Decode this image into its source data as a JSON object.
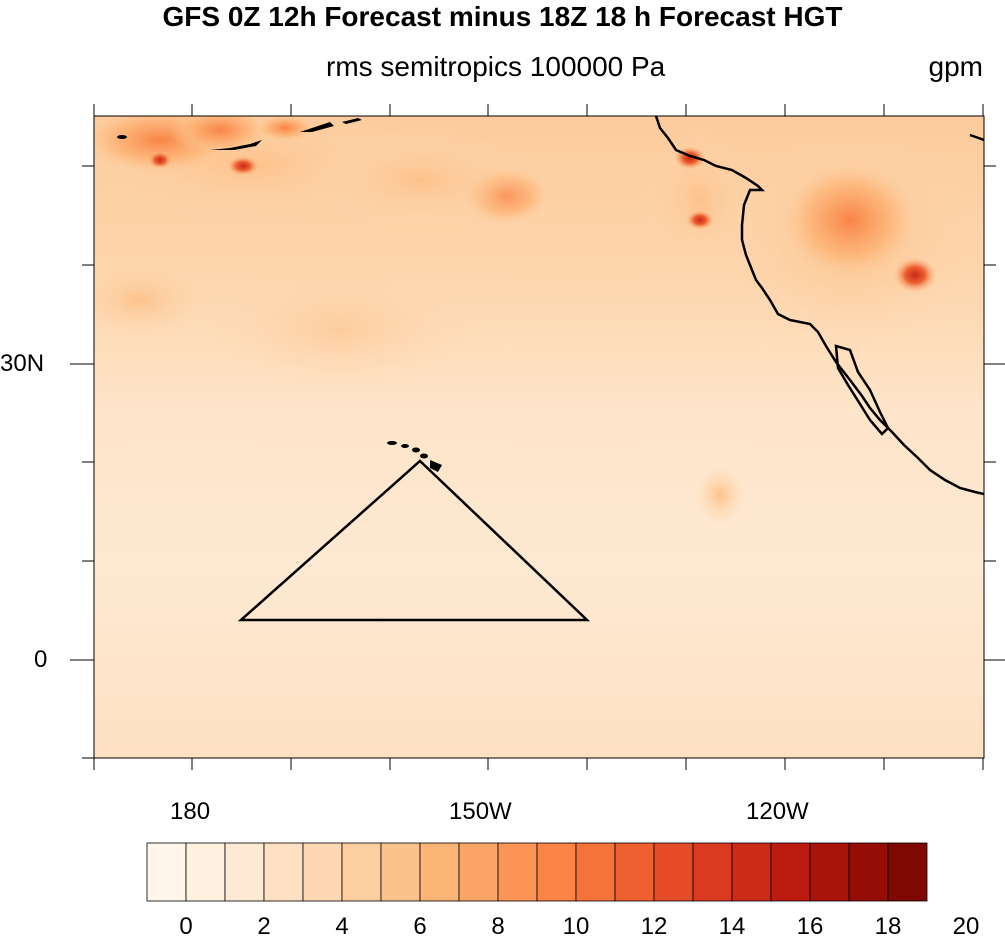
{
  "title": "GFS 0Z 12h Forecast minus 18Z 18 h Forecast HGT",
  "subtitle": "rms semitropics 100000 Pa",
  "units": "gpm",
  "map": {
    "lat_labels": [
      "30N",
      "0"
    ],
    "lon_labels": [
      "180",
      "150W",
      "120W"
    ],
    "extent": {
      "lon_min": -189,
      "lon_max": -99,
      "lat_min": -10,
      "lat_max": 55
    }
  },
  "colorbar": {
    "labels": [
      "0",
      "2",
      "4",
      "6",
      "8",
      "10",
      "12",
      "14",
      "16",
      "18",
      "20"
    ],
    "colors": [
      "#fff5eb",
      "#fff0e0",
      "#fee9d4",
      "#fee1c3",
      "#fdd8b2",
      "#fdcfa0",
      "#fdc28b",
      "#fdb477",
      "#fca566",
      "#fb9454",
      "#f98446",
      "#f5723b",
      "#ee6030",
      "#e64b28",
      "#db3920",
      "#cd2a18",
      "#bc1c10",
      "#aa1309",
      "#960d05",
      "#7f0803"
    ]
  }
}
